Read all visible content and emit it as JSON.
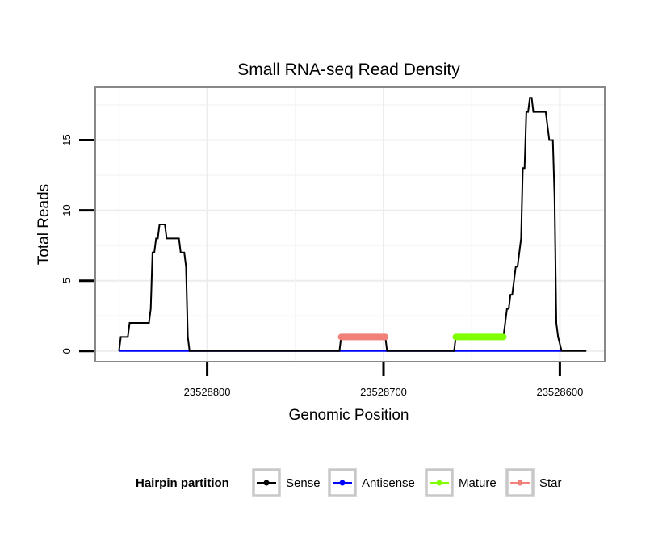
{
  "chart_data": {
    "type": "line",
    "title": "Small RNA-seq Read Density",
    "xlabel": "Genomic Position",
    "ylabel": "Total Reads",
    "x_reversed": true,
    "xlim": [
      23528863,
      23528575
    ],
    "ylim": [
      -0.7,
      18.7
    ],
    "x_ticks": [
      23528800,
      23528700,
      23528600
    ],
    "x_tick_labels": [
      "23528800",
      "23528700",
      "23528600"
    ],
    "y_ticks": [
      0,
      5,
      10,
      15
    ],
    "y_tick_labels": [
      "0",
      "5",
      "10",
      "15"
    ],
    "legend": {
      "title": "Hairpin partition",
      "position": "bottom",
      "entries": [
        "Sense",
        "Antisense",
        "Mature",
        "Star"
      ]
    },
    "series": [
      {
        "name": "Sense",
        "color": "#000000",
        "points": [
          [
            23528850,
            0
          ],
          [
            23528849,
            1
          ],
          [
            23528845,
            1
          ],
          [
            23528844,
            2
          ],
          [
            23528838,
            2
          ],
          [
            23528833,
            2
          ],
          [
            23528832,
            3
          ],
          [
            23528831,
            7
          ],
          [
            23528830,
            7
          ],
          [
            23528829,
            8
          ],
          [
            23528828,
            8
          ],
          [
            23528827,
            9
          ],
          [
            23528824,
            9
          ],
          [
            23528823,
            8
          ],
          [
            23528816,
            8
          ],
          [
            23528815,
            7
          ],
          [
            23528813,
            7
          ],
          [
            23528812,
            6
          ],
          [
            23528811,
            1
          ],
          [
            23528810,
            0
          ],
          [
            23528725,
            0
          ],
          [
            23528724,
            1
          ],
          [
            23528699,
            1
          ],
          [
            23528698,
            0
          ],
          [
            23528660,
            0
          ],
          [
            23528659,
            1
          ],
          [
            23528632,
            1
          ],
          [
            23528631,
            2
          ],
          [
            23528630,
            3
          ],
          [
            23528629,
            3
          ],
          [
            23528628,
            4
          ],
          [
            23528627,
            4
          ],
          [
            23528626,
            5
          ],
          [
            23528625,
            6
          ],
          [
            23528624,
            6
          ],
          [
            23528623,
            7
          ],
          [
            23528622,
            8
          ],
          [
            23528621,
            13
          ],
          [
            23528620,
            13
          ],
          [
            23528619,
            17
          ],
          [
            23528618,
            17
          ],
          [
            23528617,
            18
          ],
          [
            23528616,
            18
          ],
          [
            23528615,
            17
          ],
          [
            23528608,
            17
          ],
          [
            23528606,
            15
          ],
          [
            23528604,
            15
          ],
          [
            23528603,
            11
          ],
          [
            23528602,
            2
          ],
          [
            23528601,
            1
          ],
          [
            23528599,
            0
          ],
          [
            23528585,
            0
          ]
        ]
      },
      {
        "name": "Antisense",
        "color": "#0000ff",
        "points": [
          [
            23528850,
            0
          ],
          [
            23528599,
            0
          ]
        ]
      },
      {
        "name": "Mature",
        "color": "#80ff00",
        "points": [
          [
            23528659,
            1
          ],
          [
            23528632,
            1
          ]
        ]
      },
      {
        "name": "Star",
        "color": "#f08078",
        "points": [
          [
            23528724,
            1
          ],
          [
            23528699,
            1
          ]
        ]
      }
    ]
  }
}
